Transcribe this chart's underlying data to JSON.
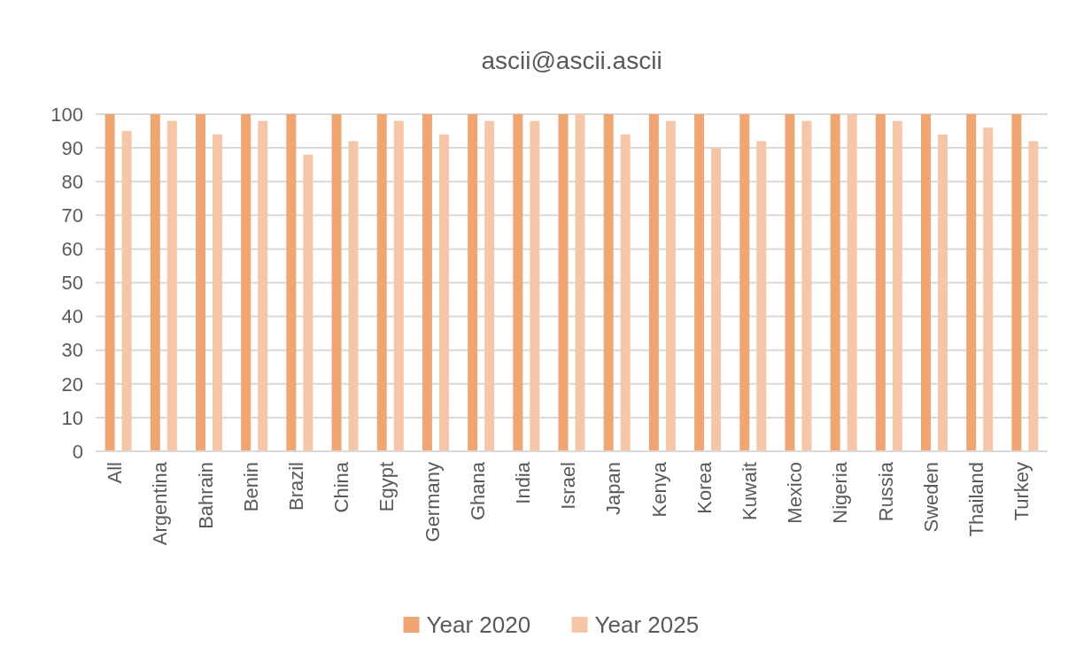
{
  "chart_data": {
    "type": "bar",
    "title": "ascii@ascii.ascii",
    "categories": [
      "All",
      "Argentina",
      "Bahrain",
      "Benin",
      "Brazil",
      "China",
      "Egypt",
      "Germany",
      "Ghana",
      "India",
      "Israel",
      "Japan",
      "Kenya",
      "Korea",
      "Kuwait",
      "Mexico",
      "Nigeria",
      "Russia",
      "Sweden",
      "Thailand",
      "Turkey"
    ],
    "series": [
      {
        "name": "Year 2020",
        "color": "#f0a673",
        "values": [
          100,
          100,
          100,
          100,
          100,
          100,
          100,
          100,
          100,
          100,
          100,
          100,
          100,
          100,
          100,
          100,
          100,
          100,
          100,
          100,
          100
        ]
      },
      {
        "name": "Year 2025",
        "color": "#f5c7a8",
        "values": [
          95,
          98,
          94,
          98,
          88,
          92,
          98,
          94,
          98,
          98,
          100,
          94,
          98,
          90,
          92,
          98,
          100,
          98,
          94,
          96,
          92
        ]
      }
    ],
    "ylim": [
      0,
      100
    ],
    "yticks": [
      0,
      10,
      20,
      30,
      40,
      50,
      60,
      70,
      80,
      90,
      100
    ],
    "grid": "y",
    "legend": "bottom"
  }
}
